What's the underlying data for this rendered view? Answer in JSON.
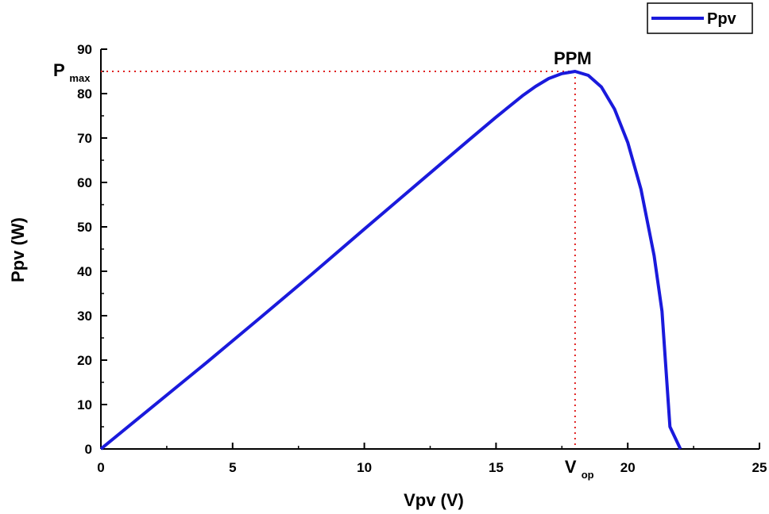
{
  "chart_data": {
    "type": "line",
    "xlabel": "Vpv (V)",
    "ylabel": "Ppv (W)",
    "xlim": [
      0,
      25
    ],
    "ylim": [
      0,
      90
    ],
    "xticks": [
      0,
      5,
      10,
      15,
      20,
      25
    ],
    "yticks": [
      0,
      10,
      20,
      30,
      40,
      50,
      60,
      70,
      80,
      90
    ],
    "grid": false,
    "legend": {
      "position": "top-right",
      "entries": [
        "Ppv"
      ]
    },
    "series": [
      {
        "name": "Ppv",
        "color": "#1a1adc",
        "x": [
          0,
          2,
          4,
          6,
          8,
          10,
          12,
          14,
          15,
          16,
          16.5,
          17,
          17.5,
          18,
          18.5,
          19,
          19.5,
          20,
          20.5,
          21,
          21.3,
          21.6,
          22
        ],
        "y": [
          0,
          9.7,
          19.4,
          29.3,
          39.3,
          49.5,
          59.6,
          69.7,
          74.7,
          79.5,
          81.6,
          83.4,
          84.5,
          85.0,
          84.1,
          81.5,
          76.5,
          69.0,
          58.5,
          43.5,
          31.0,
          5.0,
          0
        ]
      }
    ],
    "annotations": {
      "peak_label": "PPM",
      "pmax_main": "P",
      "pmax_sub": "max",
      "vop_main": "V",
      "vop_sub": "op",
      "peak_x": 18,
      "peak_y": 85,
      "ref_line_color": "#e02020"
    }
  }
}
